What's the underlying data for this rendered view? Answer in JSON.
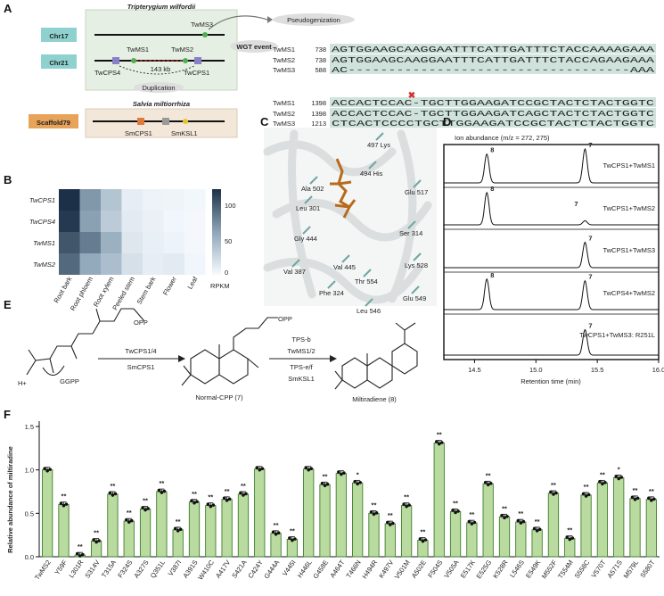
{
  "panelA": {
    "letter": "A",
    "species1": "Tripterygium wilfordii",
    "species2": "Salvia miltiorrhiza",
    "chr17": "Chr17",
    "chr21": "Chr21",
    "scaffold": "Scaffold79",
    "gene_twms3": "TwMS3",
    "gene_twms1": "TwMS1",
    "gene_twms2": "TwMS2",
    "gene_twcps4": "TwCPS4",
    "gene_twcps1": "TwCPS1",
    "gene_smcps1": "SmCPS1",
    "gene_smksl1": "SmKSL1",
    "kb": "143 kb",
    "duplication": "Duplication",
    "wgt": "WGT event",
    "pseudo": "Pseudogenization",
    "alignment": [
      {
        "name": "TwMS1",
        "pos": "738",
        "seq": "AGTGGAAGCAAGGAATTTCATTGATTTCTACCAAAAGAAA"
      },
      {
        "name": "TwMS2",
        "pos": "738",
        "seq": "AGTGGAAGCAAGGAATTTCATTGATTTCTACCAGAAGAAA"
      },
      {
        "name": "TwMS3",
        "pos": "588",
        "seq": "AC-----------------------------------AAA"
      },
      {
        "name": "TwMS1",
        "pos": "1398",
        "seq": "ACCACTCCAC-TGCTTGGAAGATCCGCTACTCTACTGGTC"
      },
      {
        "name": "TwMS2",
        "pos": "1398",
        "seq": "ACCACTCCAC-TGCTTGGAAGATCAGCTACTCTACTGGTC"
      },
      {
        "name": "TwMS3",
        "pos": "1213",
        "seq": "CTCACTCCCCTGCTTGGAAGATCCGCTACTCTACTGGTC"
      }
    ]
  },
  "panelB": {
    "letter": "B",
    "rows": [
      "TwCPS1",
      "TwCPS4",
      "TwMS1",
      "TwMS2"
    ],
    "cols": [
      "Root bark",
      "Root phloem",
      "Root xylem",
      "Peeled stem",
      "Stem bark",
      "Flower",
      "Leaf"
    ],
    "values": [
      [
        125,
        70,
        40,
        10,
        6,
        5,
        3
      ],
      [
        120,
        65,
        35,
        12,
        8,
        4,
        2
      ],
      [
        105,
        85,
        55,
        15,
        9,
        6,
        2
      ],
      [
        95,
        60,
        45,
        20,
        10,
        12,
        4
      ]
    ],
    "scale_ticks": [
      "100",
      "50",
      "0"
    ],
    "unit": "RPKM"
  },
  "panelC": {
    "letter": "C",
    "residues": [
      "497 Lys",
      "Ala 502",
      "494 His",
      "Glu 517",
      "Leu 301",
      "Gly 444",
      "Ser 314",
      "Val 387",
      "Val 445",
      "Lys 528",
      "Thr 554",
      "Phe 324",
      "Glu 549",
      "Leu 546"
    ]
  },
  "panelD": {
    "letter": "D",
    "title": "Ion abundance (m/z = 272, 275)",
    "xlabel": "Retention time (min)",
    "ticks": [
      "14.5",
      "15.0",
      "15.5",
      "16.0"
    ],
    "traces": [
      {
        "label": "TwCPS1+TwMS1",
        "p8": 0.85,
        "p7": 1.0
      },
      {
        "label": "TwCPS1+TwMS2",
        "p8": 0.95,
        "p7": 0.12
      },
      {
        "label": "TwCPS1+TwMS3",
        "p8": 0,
        "p7": 0.75
      },
      {
        "label": "TwCPS4+TwMS2",
        "p8": 0.9,
        "p7": 0.85
      },
      {
        "label": "TwCPS1+TwMS3: R251L",
        "p8": 0,
        "p7": 0.75
      }
    ],
    "peak8": "8",
    "peak7": "7"
  },
  "panelE": {
    "letter": "E",
    "ggpp": "GGPP",
    "cpp": "Normal-CPP (7)",
    "product": "Miltiradiene (8)",
    "enz1a": "TwCPS1/4",
    "enz1b": "SmCPS1",
    "enz2a": "TPS-b",
    "enz2b": "TwMS1/2",
    "enz2c": "TPS-e/f",
    "enz2d": "SmKSL1",
    "opp": "OPP",
    "hplus": "H+"
  },
  "chart_data": {
    "type": "bar",
    "letter": "F",
    "ylabel": "Relative abundance of miltiradine",
    "ylim": [
      0,
      1.5
    ],
    "yticks": [
      "0.0",
      "0.5",
      "1.0",
      "1.5"
    ],
    "categories": [
      "TwMS2",
      "Y59F",
      "L301R",
      "S314V",
      "T315A",
      "F324S",
      "A327S",
      "Q351L",
      "V387I",
      "A391S",
      "W410C",
      "A417V",
      "S421A",
      "C424Y",
      "G444A",
      "V445I",
      "H446L",
      "G458E",
      "A464T",
      "T466N",
      "H494R",
      "K497V",
      "V501M",
      "A502E",
      "F504S",
      "V505A",
      "E517K",
      "E525G",
      "K528R",
      "L546S",
      "E549K",
      "M552F",
      "T554M",
      "S558C",
      "V570T",
      "A571S",
      "M579L",
      "S580T"
    ],
    "values": [
      1.0,
      0.6,
      0.02,
      0.18,
      0.72,
      0.41,
      0.55,
      0.75,
      0.31,
      0.63,
      0.59,
      0.66,
      0.72,
      1.01,
      0.27,
      0.2,
      1.01,
      0.83,
      0.96,
      0.85,
      0.5,
      0.38,
      0.59,
      0.19,
      1.31,
      0.52,
      0.39,
      0.84,
      0.46,
      0.4,
      0.31,
      0.73,
      0.21,
      0.71,
      0.85,
      0.91,
      0.67,
      0.66
    ],
    "significance": [
      "",
      "**",
      "**",
      "**",
      "**",
      "**",
      "**",
      "**",
      "**",
      "**",
      "**",
      "**",
      "**",
      "",
      "**",
      "**",
      "",
      "**",
      "",
      "*",
      "**",
      "**",
      "**",
      "**",
      "**",
      "**",
      "**",
      "**",
      "**",
      "**",
      "**",
      "**",
      "**",
      "**",
      "**",
      "*",
      "**",
      "**"
    ],
    "bar_color": "#b9dba0",
    "bar_stroke": "#3f7d2d"
  }
}
